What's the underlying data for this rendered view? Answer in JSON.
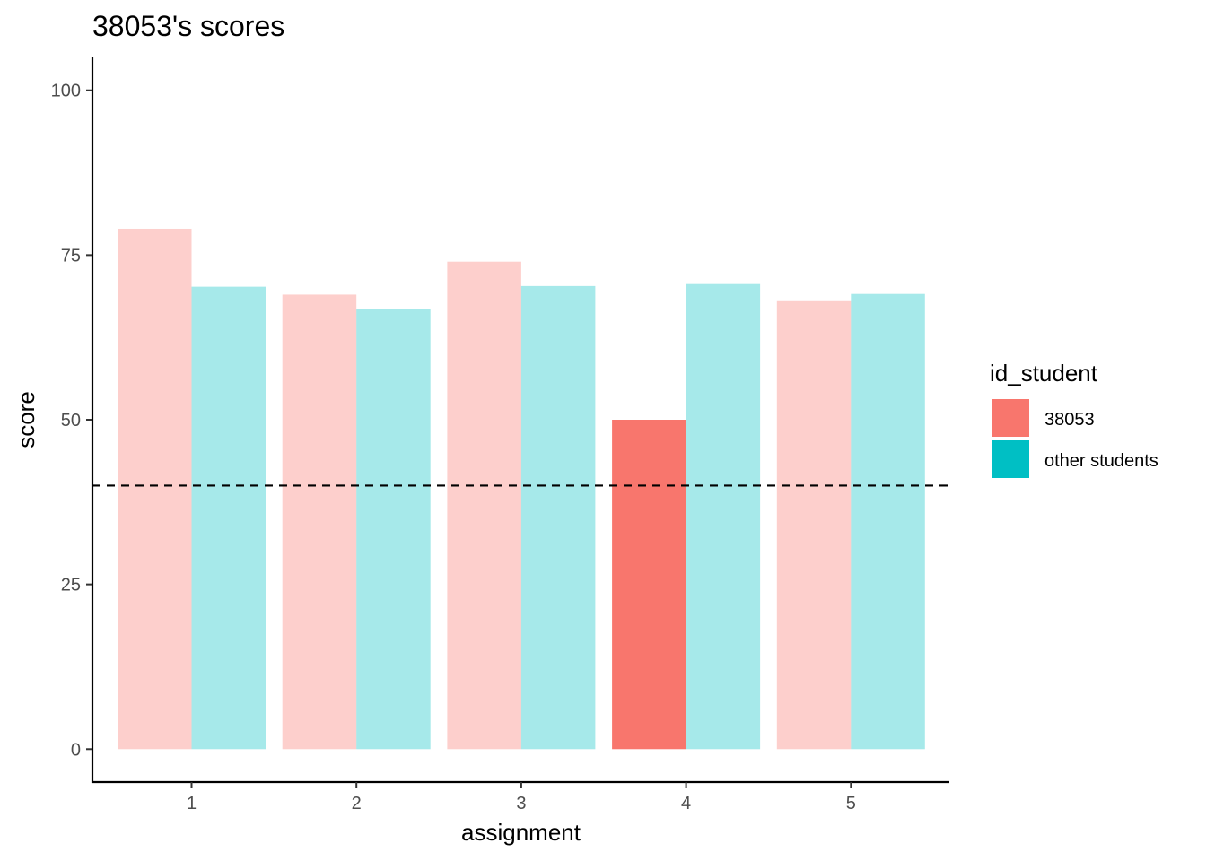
{
  "chart_data": {
    "type": "bar",
    "title": "38053's scores",
    "xlabel": "assignment",
    "ylabel": "score",
    "categories": [
      "1",
      "2",
      "3",
      "4",
      "5"
    ],
    "series": [
      {
        "name": "38053",
        "values": [
          79,
          69,
          74,
          50,
          68
        ],
        "color": "#F8766D",
        "alpha_by_category": [
          0.35,
          0.35,
          0.35,
          1.0,
          0.35
        ]
      },
      {
        "name": "other students",
        "values": [
          70.2,
          66.8,
          70.3,
          70.6,
          69.1
        ],
        "color": "#00BFC4",
        "alpha_by_category": [
          0.35,
          0.35,
          0.35,
          0.35,
          0.35
        ]
      }
    ],
    "ylim": [
      -5,
      105
    ],
    "yticks": [
      0,
      25,
      50,
      75,
      100
    ],
    "reference_line": {
      "value": 40,
      "style": "dashed",
      "color": "#000000"
    },
    "legend": {
      "title": "id_student",
      "position": "right"
    },
    "grid": false
  }
}
